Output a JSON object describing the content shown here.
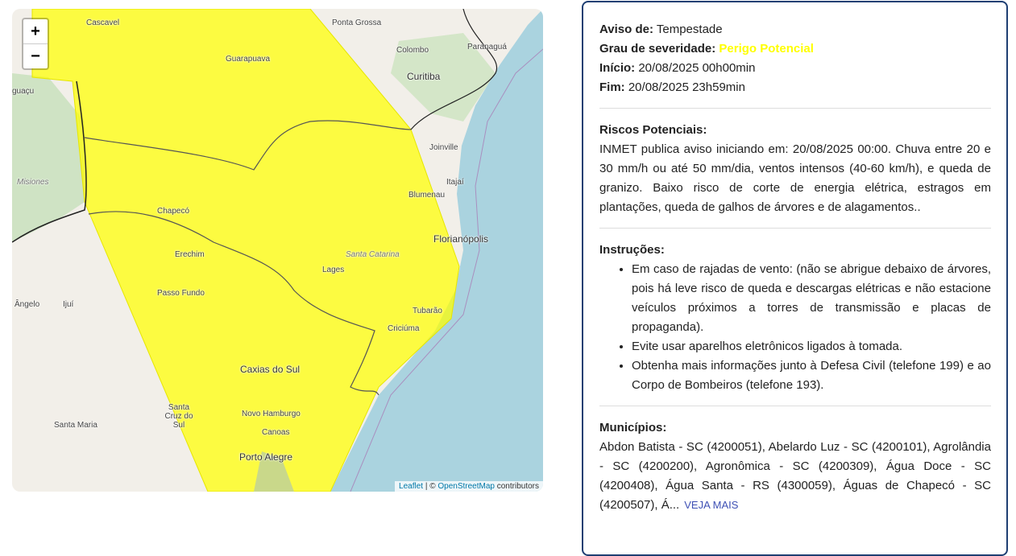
{
  "map": {
    "zoom_in": "+",
    "zoom_out": "−",
    "labels": [
      "Cascavel",
      "Ponta Grossa",
      "Colombo",
      "Guarapuava",
      "Curitiba",
      "Paranaguá",
      "Joinville",
      "Misiones",
      "Itajaí",
      "Blumenau",
      "Chapecó",
      "Florianópolis",
      "Erechim",
      "Santa Catarina",
      "Lages",
      "Ângelo",
      "Ijuí",
      "Passo Fundo",
      "Tubarão",
      "Criciúma",
      "Caxias do Sul",
      "Santa Cruz do Sul",
      "Santa Maria",
      "Novo Hamburgo",
      "Canoas",
      "Porto Alegre",
      "guaçu"
    ],
    "attribution": {
      "leaflet": "Leaflet",
      "sep": " | © ",
      "osm": "OpenStreetMap",
      "contributors": " contributors"
    },
    "colors": {
      "alert_area": "#ffff00",
      "water": "#aad3df",
      "land": "#f2efe9"
    }
  },
  "alert": {
    "type_label": "Aviso de:",
    "type": "Tempestade",
    "severity_label": "Grau de severidade:",
    "severity": "Perigo Potencial",
    "severity_color": "#ffff00",
    "start_label": "Início:",
    "start": "20/08/2025 00h00min",
    "end_label": "Fim:",
    "end": "20/08/2025 23h59min",
    "risks_label": "Riscos Potenciais:",
    "risks": "INMET publica aviso iniciando em: 20/08/2025 00:00. Chuva entre 20 e 30 mm/h ou até 50 mm/dia, ventos intensos (40-60 km/h), e queda de granizo. Baixo risco de corte de energia elétrica, estragos em plantações, queda de galhos de árvores e de alagamentos..",
    "instructions_label": "Instruções:",
    "instructions": [
      "Em caso de rajadas de vento: (não se abrigue debaixo de árvores, pois há leve risco de queda e descargas elétricas e não estacione veículos próximos a torres de transmissão e placas de propaganda).",
      "Evite usar aparelhos eletrônicos ligados à tomada.",
      "Obtenha mais informações junto à Defesa Civil (telefone 199) e ao Corpo de Bombeiros (telefone 193)."
    ],
    "municipalities_label": "Municípios:",
    "municipalities": "Abdon Batista - SC (4200051), Abelardo Luz - SC (4200101), Agrolândia - SC (4200200), Agronômica - SC (4200309), Água Doce - SC (4200408), Água Santa - RS (4300059), Águas de Chapecó - SC (4200507), Á...",
    "see_more": "VEJA MAIS"
  }
}
